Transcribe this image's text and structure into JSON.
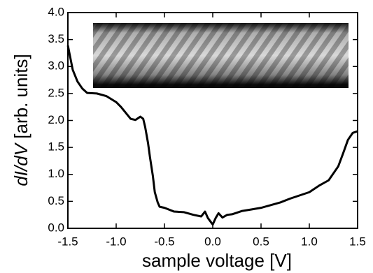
{
  "chart_data": {
    "type": "line",
    "xlabel": "sample voltage [V]",
    "ylabel": "dI/dV [arb. units]",
    "x": [
      -1.5,
      -1.45,
      -1.4,
      -1.35,
      -1.3,
      -1.2,
      -1.1,
      -1.0,
      -0.95,
      -0.9,
      -0.85,
      -0.8,
      -0.75,
      -0.72,
      -0.7,
      -0.67,
      -0.65,
      -0.62,
      -0.6,
      -0.57,
      -0.55,
      -0.5,
      -0.4,
      -0.3,
      -0.2,
      -0.12,
      -0.08,
      -0.05,
      0.0,
      0.03,
      0.06,
      0.1,
      0.15,
      0.2,
      0.3,
      0.4,
      0.5,
      0.6,
      0.7,
      0.8,
      0.9,
      1.0,
      1.1,
      1.2,
      1.3,
      1.35,
      1.4,
      1.45,
      1.5
    ],
    "series": [
      {
        "color": "#000000",
        "values": [
          3.39,
          2.94,
          2.72,
          2.59,
          2.51,
          2.5,
          2.45,
          2.34,
          2.25,
          2.14,
          2.03,
          2.01,
          2.07,
          2.03,
          1.88,
          1.58,
          1.32,
          0.97,
          0.67,
          0.48,
          0.4,
          0.38,
          0.31,
          0.3,
          0.25,
          0.22,
          0.31,
          0.19,
          0.07,
          0.19,
          0.28,
          0.2,
          0.25,
          0.26,
          0.32,
          0.35,
          0.38,
          0.43,
          0.48,
          0.55,
          0.61,
          0.67,
          0.79,
          0.89,
          1.15,
          1.39,
          1.64,
          1.77,
          1.8
        ]
      }
    ],
    "xlim": [
      -1.5,
      1.5
    ],
    "ylim": [
      0,
      4
    ],
    "xticks": [
      -1.5,
      {
        "value": -1,
        "label": "-1.0"
      },
      -0.5,
      {
        "value": 0,
        "label": "0.0"
      },
      0.5,
      {
        "value": 1,
        "label": "1.0"
      },
      1.5
    ],
    "yticks": [
      {
        "value": 0,
        "label": "0.0"
      },
      0.5,
      {
        "value": 1,
        "label": "1.0"
      },
      1.5,
      {
        "value": 2,
        "label": "2.0"
      },
      2.5,
      {
        "value": 3,
        "label": "3.0"
      },
      3.5,
      {
        "value": 4,
        "label": "4.0"
      }
    ]
  }
}
